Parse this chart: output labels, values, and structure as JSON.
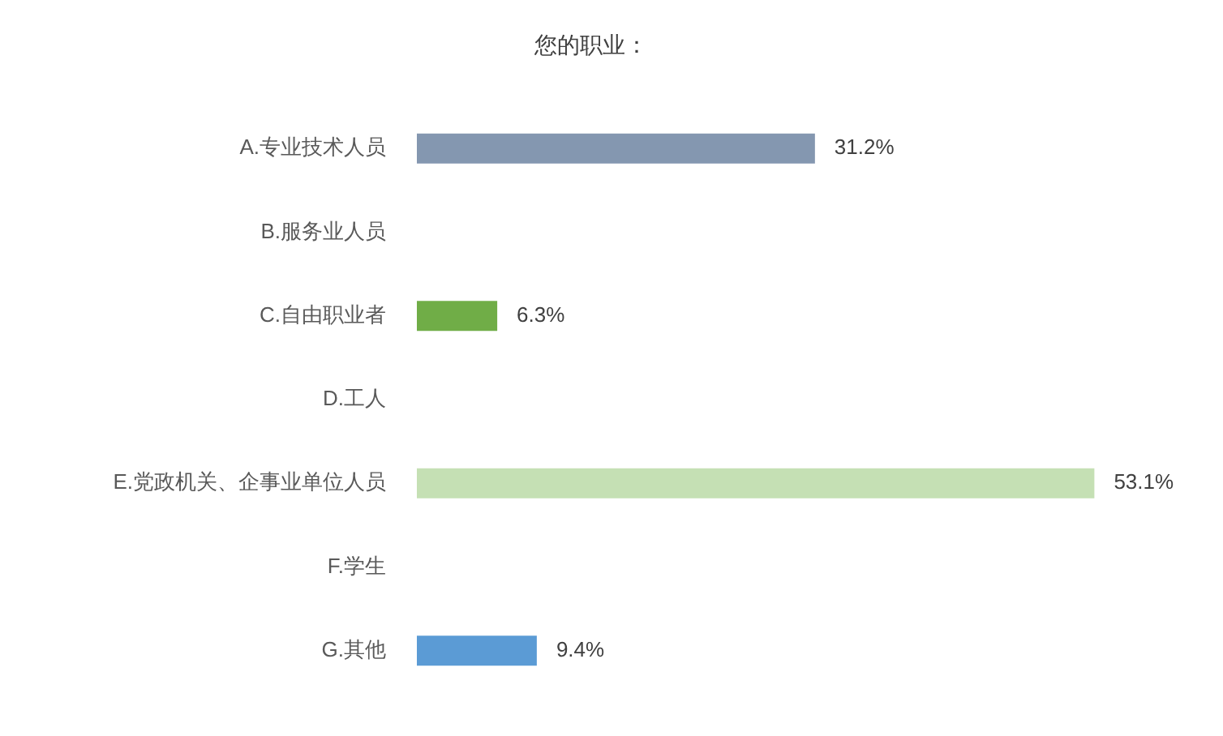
{
  "chart_data": {
    "type": "bar",
    "title": "您的职业：",
    "orientation": "horizontal",
    "categories": [
      "A.专业技术人员",
      "B.服务业人员",
      "C.自由职业者",
      "D.工人",
      "E.党政机关、企事业单位人员",
      "F.学生",
      "G.其他"
    ],
    "values": [
      31.2,
      0,
      6.3,
      0,
      53.1,
      0,
      9.4
    ],
    "colors": [
      "#8497b0",
      null,
      "#70ad47",
      null,
      "#c5e0b4",
      null,
      "#5b9bd5"
    ],
    "value_labels": [
      "31.2%",
      null,
      "6.3%",
      null,
      "53.1%",
      null,
      "9.4%"
    ],
    "tick_labels": "y"
  }
}
